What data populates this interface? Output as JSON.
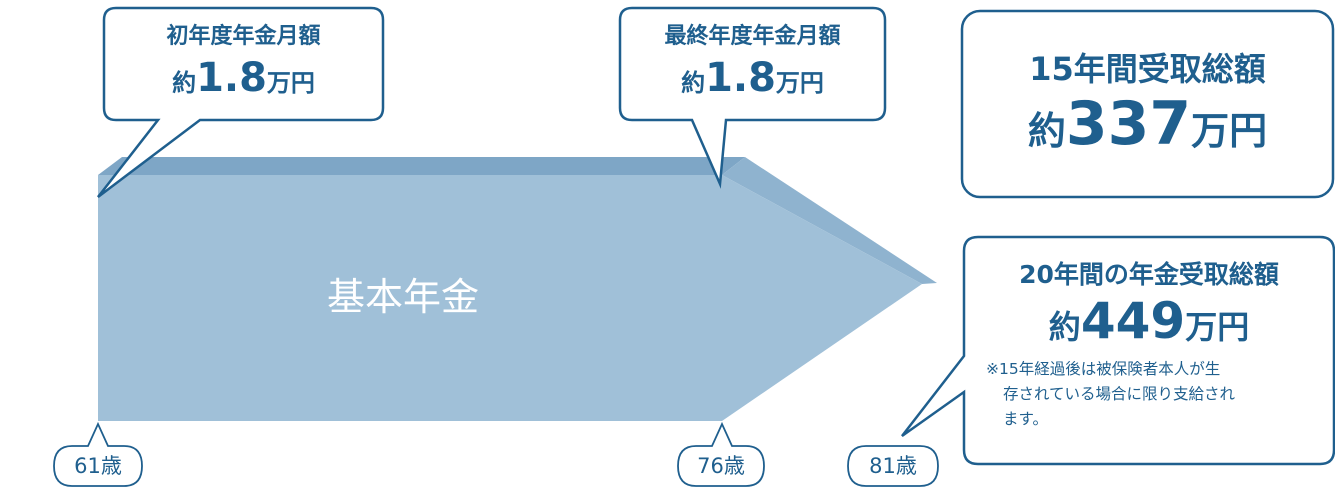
{
  "callouts": {
    "first_year": {
      "label": "初年度年金月額",
      "prefix": "約",
      "amount": "1.8",
      "unit": "万円"
    },
    "final_year": {
      "label": "最終年度年金月額",
      "prefix": "約",
      "amount": "1.8",
      "unit": "万円"
    },
    "total_15": {
      "label": "15年間受取総額",
      "prefix": "約",
      "amount": "337",
      "unit": "万円"
    },
    "total_20": {
      "label": "20年間の年金受取総額",
      "prefix": "約",
      "amount": "449",
      "unit": "万円",
      "note_line1": "※15年経過後は被保険者本人が生",
      "note_line2": "存されている場合に限り支給され",
      "note_line3": "ます。"
    }
  },
  "arrow": {
    "label": "基本年金"
  },
  "ages": {
    "start": "61歳",
    "mid": "76歳",
    "end": "81歳"
  },
  "colors": {
    "frame": "#1f5f8e",
    "arrow_face": "#a0c0d8",
    "arrow_top": "#7ea6c6",
    "arrow_tip_top": "#8fb3cf",
    "text": "#1f5f8e"
  }
}
